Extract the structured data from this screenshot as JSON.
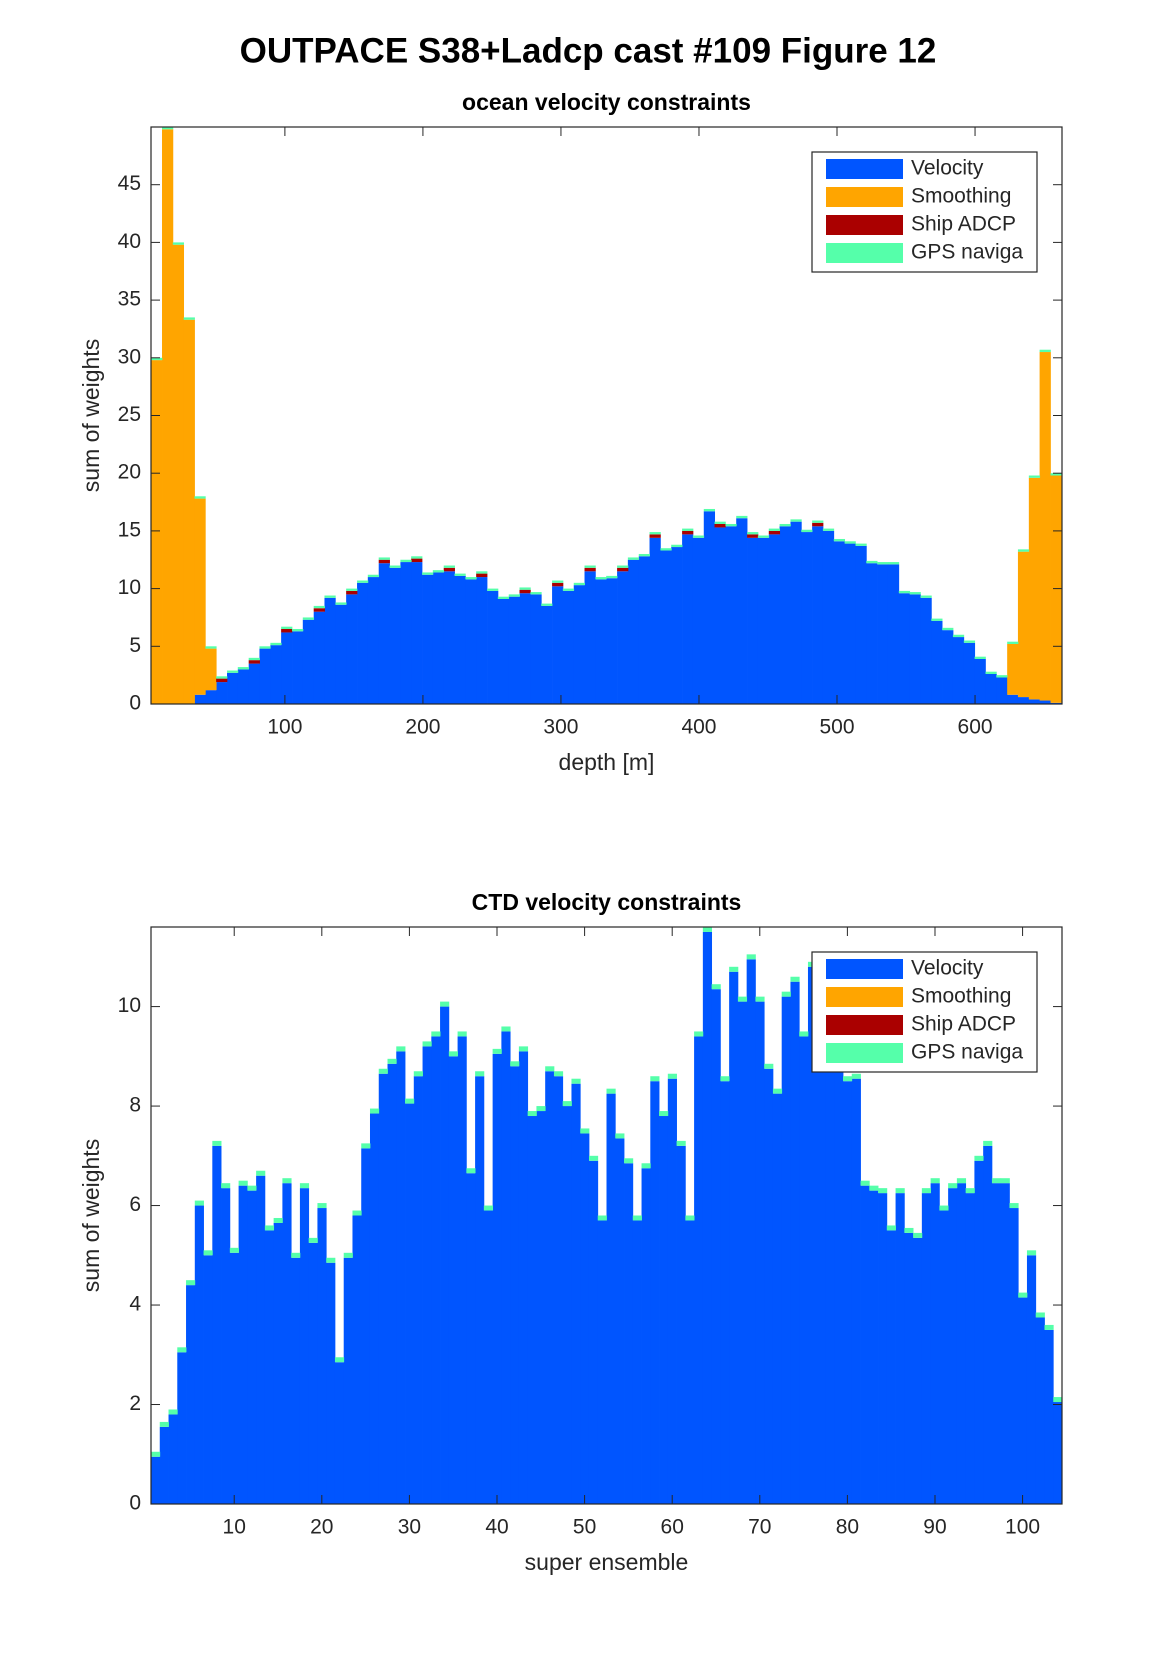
{
  "title": "OUTPACE S38+Ladcp cast #109  Figure 12",
  "chart_data": [
    {
      "type": "bar",
      "stacked": true,
      "title": "ocean velocity constraints",
      "x_label": "depth [m]",
      "y_label": "sum of weights",
      "xlim": [
        3,
        663
      ],
      "ylim": [
        0,
        50
      ],
      "xticks": [
        100,
        200,
        300,
        400,
        500,
        600
      ],
      "yticks": [
        0,
        5,
        10,
        15,
        20,
        25,
        30,
        35,
        40,
        45
      ],
      "legend": "northeast",
      "x": [
        7.0,
        14.9,
        22.7,
        30.6,
        38.4,
        46.3,
        54.1,
        62.0,
        69.8,
        77.7,
        85.5,
        93.4,
        101.2,
        109.1,
        116.9,
        124.8,
        132.6,
        140.5,
        148.3,
        156.2,
        164.0,
        171.9,
        179.7,
        187.6,
        195.4,
        203.3,
        211.1,
        219.0,
        226.8,
        234.7,
        242.5,
        250.4,
        258.2,
        266.1,
        273.9,
        281.8,
        289.6,
        297.5,
        305.3,
        313.2,
        321.0,
        328.9,
        336.7,
        344.6,
        352.4,
        360.3,
        368.1,
        376.0,
        383.8,
        391.7,
        399.5,
        407.4,
        415.2,
        423.1,
        430.9,
        438.8,
        446.6,
        454.5,
        462.3,
        470.2,
        478.0,
        485.9,
        493.7,
        501.6,
        509.4,
        517.3,
        525.1,
        533.0,
        540.8,
        548.7,
        556.5,
        564.4,
        572.2,
        580.1,
        587.9,
        595.8,
        603.6,
        611.5,
        619.3,
        627.2,
        635.0,
        642.9,
        650.7,
        658.6
      ],
      "series": [
        {
          "name": "Velocity",
          "color": "#0055ff",
          "values": [
            0,
            0,
            0,
            0,
            0.8,
            1.2,
            1.9,
            2.7,
            3.0,
            3.5,
            4.8,
            5.1,
            6.2,
            6.3,
            7.3,
            8.0,
            9.2,
            8.6,
            9.5,
            10.5,
            11.0,
            12.2,
            11.8,
            12.3,
            12.3,
            11.2,
            11.4,
            11.5,
            11.1,
            10.8,
            11.0,
            9.8,
            9.1,
            9.3,
            9.6,
            9.5,
            8.5,
            10.2,
            9.8,
            10.3,
            11.5,
            10.8,
            10.9,
            11.5,
            12.5,
            12.8,
            14.4,
            13.3,
            13.6,
            14.7,
            14.4,
            16.7,
            15.3,
            15.4,
            16.1,
            14.4,
            14.4,
            14.7,
            15.4,
            15.8,
            14.9,
            15.4,
            15.0,
            14.1,
            13.9,
            13.7,
            12.2,
            12.1,
            12.1,
            9.6,
            9.5,
            9.2,
            7.2,
            6.4,
            5.8,
            5.3,
            3.9,
            2.6,
            2.3,
            0.8,
            0.6,
            0.4,
            0.3,
            0.1
          ]
        },
        {
          "name": "Smoothing",
          "color": "#ffa500",
          "values": [
            29.8,
            49.8,
            39.8,
            33.3,
            17.0,
            3.6,
            0,
            0,
            0,
            0,
            0,
            0,
            0,
            0,
            0,
            0,
            0,
            0,
            0,
            0,
            0,
            0,
            0,
            0,
            0,
            0,
            0,
            0,
            0,
            0,
            0,
            0,
            0,
            0,
            0,
            0,
            0,
            0,
            0,
            0,
            0,
            0,
            0,
            0,
            0,
            0,
            0,
            0,
            0,
            0,
            0,
            0,
            0,
            0,
            0,
            0,
            0,
            0,
            0,
            0,
            0,
            0,
            0,
            0,
            0,
            0,
            0,
            0,
            0,
            0,
            0,
            0,
            0,
            0,
            0,
            0,
            0,
            0,
            0,
            4.4,
            12.6,
            19.2,
            30.2,
            19.7
          ]
        },
        {
          "name": "Ship ADCP",
          "color": "#aa0000",
          "values": [
            0,
            0,
            0,
            0,
            0,
            0,
            0.3,
            0,
            0,
            0.3,
            0,
            0,
            0.3,
            0,
            0,
            0.3,
            0,
            0,
            0.3,
            0,
            0,
            0.3,
            0,
            0,
            0.3,
            0,
            0,
            0.3,
            0,
            0,
            0.3,
            0,
            0,
            0,
            0.3,
            0,
            0,
            0.3,
            0,
            0,
            0.3,
            0,
            0,
            0.3,
            0,
            0,
            0.3,
            0,
            0,
            0.3,
            0,
            0,
            0.3,
            0,
            0,
            0.3,
            0,
            0.3,
            0,
            0,
            0,
            0.3,
            0,
            0,
            0,
            0,
            0,
            0,
            0,
            0,
            0,
            0,
            0,
            0,
            0,
            0,
            0,
            0,
            0,
            0,
            0,
            0,
            0,
            0
          ]
        },
        {
          "name": "GPS naviga",
          "color": "#55ffaa",
          "values": [
            0.2,
            0.2,
            0.2,
            0.2,
            0.2,
            0.2,
            0.2,
            0.2,
            0.2,
            0.2,
            0.2,
            0.2,
            0.2,
            0.2,
            0.2,
            0.2,
            0.2,
            0.2,
            0.2,
            0.2,
            0.2,
            0.2,
            0.2,
            0.2,
            0.2,
            0.2,
            0.2,
            0.2,
            0.2,
            0.2,
            0.2,
            0.2,
            0.2,
            0.2,
            0.2,
            0.2,
            0.2,
            0.2,
            0.2,
            0.2,
            0.2,
            0.2,
            0.2,
            0.2,
            0.2,
            0.2,
            0.2,
            0.2,
            0.2,
            0.2,
            0.2,
            0.2,
            0.2,
            0.2,
            0.2,
            0.2,
            0.2,
            0.2,
            0.2,
            0.2,
            0.2,
            0.2,
            0.2,
            0.2,
            0.2,
            0.2,
            0.2,
            0.2,
            0.2,
            0.2,
            0.2,
            0.2,
            0.2,
            0.2,
            0.2,
            0.2,
            0.2,
            0.2,
            0.2,
            0.2,
            0.2,
            0.2,
            0.2,
            0.2
          ]
        }
      ]
    },
    {
      "type": "bar",
      "stacked": true,
      "title": "CTD velocity constraints",
      "x_label": "super ensemble",
      "y_label": "sum of weights",
      "xlim": [
        0.5,
        104.5
      ],
      "ylim": [
        0,
        11.6
      ],
      "xticks": [
        10,
        20,
        30,
        40,
        50,
        60,
        70,
        80,
        90,
        100
      ],
      "yticks": [
        0,
        2,
        4,
        6,
        8,
        10
      ],
      "legend": "northeast",
      "x": [
        1,
        2,
        3,
        4,
        5,
        6,
        7,
        8,
        9,
        10,
        11,
        12,
        13,
        14,
        15,
        16,
        17,
        18,
        19,
        20,
        21,
        22,
        23,
        24,
        25,
        26,
        27,
        28,
        29,
        30,
        31,
        32,
        33,
        34,
        35,
        36,
        37,
        38,
        39,
        40,
        41,
        42,
        43,
        44,
        45,
        46,
        47,
        48,
        49,
        50,
        51,
        52,
        53,
        54,
        55,
        56,
        57,
        58,
        59,
        60,
        61,
        62,
        63,
        64,
        65,
        66,
        67,
        68,
        69,
        70,
        71,
        72,
        73,
        74,
        75,
        76,
        77,
        78,
        79,
        80,
        81,
        82,
        83,
        84,
        85,
        86,
        87,
        88,
        89,
        90,
        91,
        92,
        93,
        94,
        95,
        96,
        97,
        98,
        99,
        100,
        101,
        102,
        103,
        104
      ],
      "series": [
        {
          "name": "Velocity",
          "color": "#0055ff",
          "values": [
            0.95,
            1.55,
            1.8,
            3.05,
            4.4,
            6.0,
            5.0,
            7.2,
            6.35,
            5.05,
            6.4,
            6.3,
            6.6,
            5.5,
            5.65,
            6.45,
            4.95,
            6.35,
            5.25,
            5.95,
            4.85,
            2.85,
            4.95,
            5.8,
            7.15,
            7.85,
            8.65,
            8.85,
            9.1,
            8.05,
            8.6,
            9.2,
            9.4,
            10.0,
            9.0,
            9.4,
            6.65,
            8.6,
            5.9,
            9.05,
            9.5,
            8.8,
            9.1,
            7.8,
            7.9,
            8.7,
            8.6,
            8.0,
            8.45,
            7.45,
            6.9,
            5.7,
            8.25,
            7.35,
            6.85,
            5.7,
            6.75,
            8.5,
            7.8,
            8.55,
            7.2,
            5.7,
            9.4,
            11.5,
            10.35,
            8.5,
            10.7,
            10.1,
            10.95,
            10.1,
            8.75,
            8.25,
            10.2,
            10.5,
            9.4,
            10.8,
            9.5,
            9.4,
            9.2,
            8.5,
            8.55,
            6.4,
            6.3,
            6.25,
            5.5,
            6.25,
            5.45,
            5.35,
            6.25,
            6.45,
            5.9,
            6.35,
            6.45,
            6.25,
            6.9,
            7.2,
            6.45,
            6.45,
            5.95,
            4.15,
            5.0,
            3.75,
            3.5,
            2.05
          ]
        },
        {
          "name": "Smoothing",
          "color": "#ffa500",
          "values": [
            0,
            0,
            0,
            0,
            0,
            0,
            0,
            0,
            0,
            0,
            0,
            0,
            0,
            0,
            0,
            0,
            0,
            0,
            0,
            0,
            0,
            0,
            0,
            0,
            0,
            0,
            0,
            0,
            0,
            0,
            0,
            0,
            0,
            0,
            0,
            0,
            0,
            0,
            0,
            0,
            0,
            0,
            0,
            0,
            0,
            0,
            0,
            0,
            0,
            0,
            0,
            0,
            0,
            0,
            0,
            0,
            0,
            0,
            0,
            0,
            0,
            0,
            0,
            0,
            0,
            0,
            0,
            0,
            0,
            0,
            0,
            0,
            0,
            0,
            0,
            0,
            0,
            0,
            0,
            0,
            0,
            0,
            0,
            0,
            0,
            0,
            0,
            0,
            0,
            0,
            0,
            0,
            0,
            0,
            0,
            0,
            0,
            0,
            0,
            0,
            0,
            0,
            0,
            0
          ]
        },
        {
          "name": "Ship ADCP",
          "color": "#aa0000",
          "values": [
            0,
            0,
            0,
            0,
            0,
            0,
            0,
            0,
            0,
            0,
            0,
            0,
            0,
            0,
            0,
            0,
            0,
            0,
            0,
            0,
            0,
            0,
            0,
            0,
            0,
            0,
            0,
            0,
            0,
            0,
            0,
            0,
            0,
            0,
            0,
            0,
            0,
            0,
            0,
            0,
            0,
            0,
            0,
            0,
            0,
            0,
            0,
            0,
            0,
            0,
            0,
            0,
            0,
            0,
            0,
            0,
            0,
            0,
            0,
            0,
            0,
            0,
            0,
            0,
            0,
            0,
            0,
            0,
            0,
            0,
            0,
            0,
            0,
            0,
            0,
            0,
            0,
            0,
            0,
            0,
            0,
            0,
            0,
            0,
            0,
            0,
            0,
            0,
            0,
            0,
            0,
            0,
            0,
            0,
            0,
            0,
            0,
            0,
            0,
            0,
            0,
            0,
            0,
            0
          ]
        },
        {
          "name": "GPS naviga",
          "color": "#55ffaa",
          "values": [
            0.1,
            0.1,
            0.1,
            0.1,
            0.1,
            0.1,
            0.1,
            0.1,
            0.1,
            0.1,
            0.1,
            0.1,
            0.1,
            0.1,
            0.1,
            0.1,
            0.1,
            0.1,
            0.1,
            0.1,
            0.1,
            0.1,
            0.1,
            0.1,
            0.1,
            0.1,
            0.1,
            0.1,
            0.1,
            0.1,
            0.1,
            0.1,
            0.1,
            0.1,
            0.1,
            0.1,
            0.1,
            0.1,
            0.1,
            0.1,
            0.1,
            0.1,
            0.1,
            0.1,
            0.1,
            0.1,
            0.1,
            0.1,
            0.1,
            0.1,
            0.1,
            0.1,
            0.1,
            0.1,
            0.1,
            0.1,
            0.1,
            0.1,
            0.1,
            0.1,
            0.1,
            0.1,
            0.1,
            0.1,
            0.1,
            0.1,
            0.1,
            0.1,
            0.1,
            0.1,
            0.1,
            0.1,
            0.1,
            0.1,
            0.1,
            0.1,
            0.1,
            0.1,
            0.1,
            0.1,
            0.1,
            0.1,
            0.1,
            0.1,
            0.1,
            0.1,
            0.1,
            0.1,
            0.1,
            0.1,
            0.1,
            0.1,
            0.1,
            0.1,
            0.1,
            0.1,
            0.1,
            0.1,
            0.1,
            0.1,
            0.1,
            0.1,
            0.1,
            0.1
          ]
        }
      ]
    }
  ]
}
